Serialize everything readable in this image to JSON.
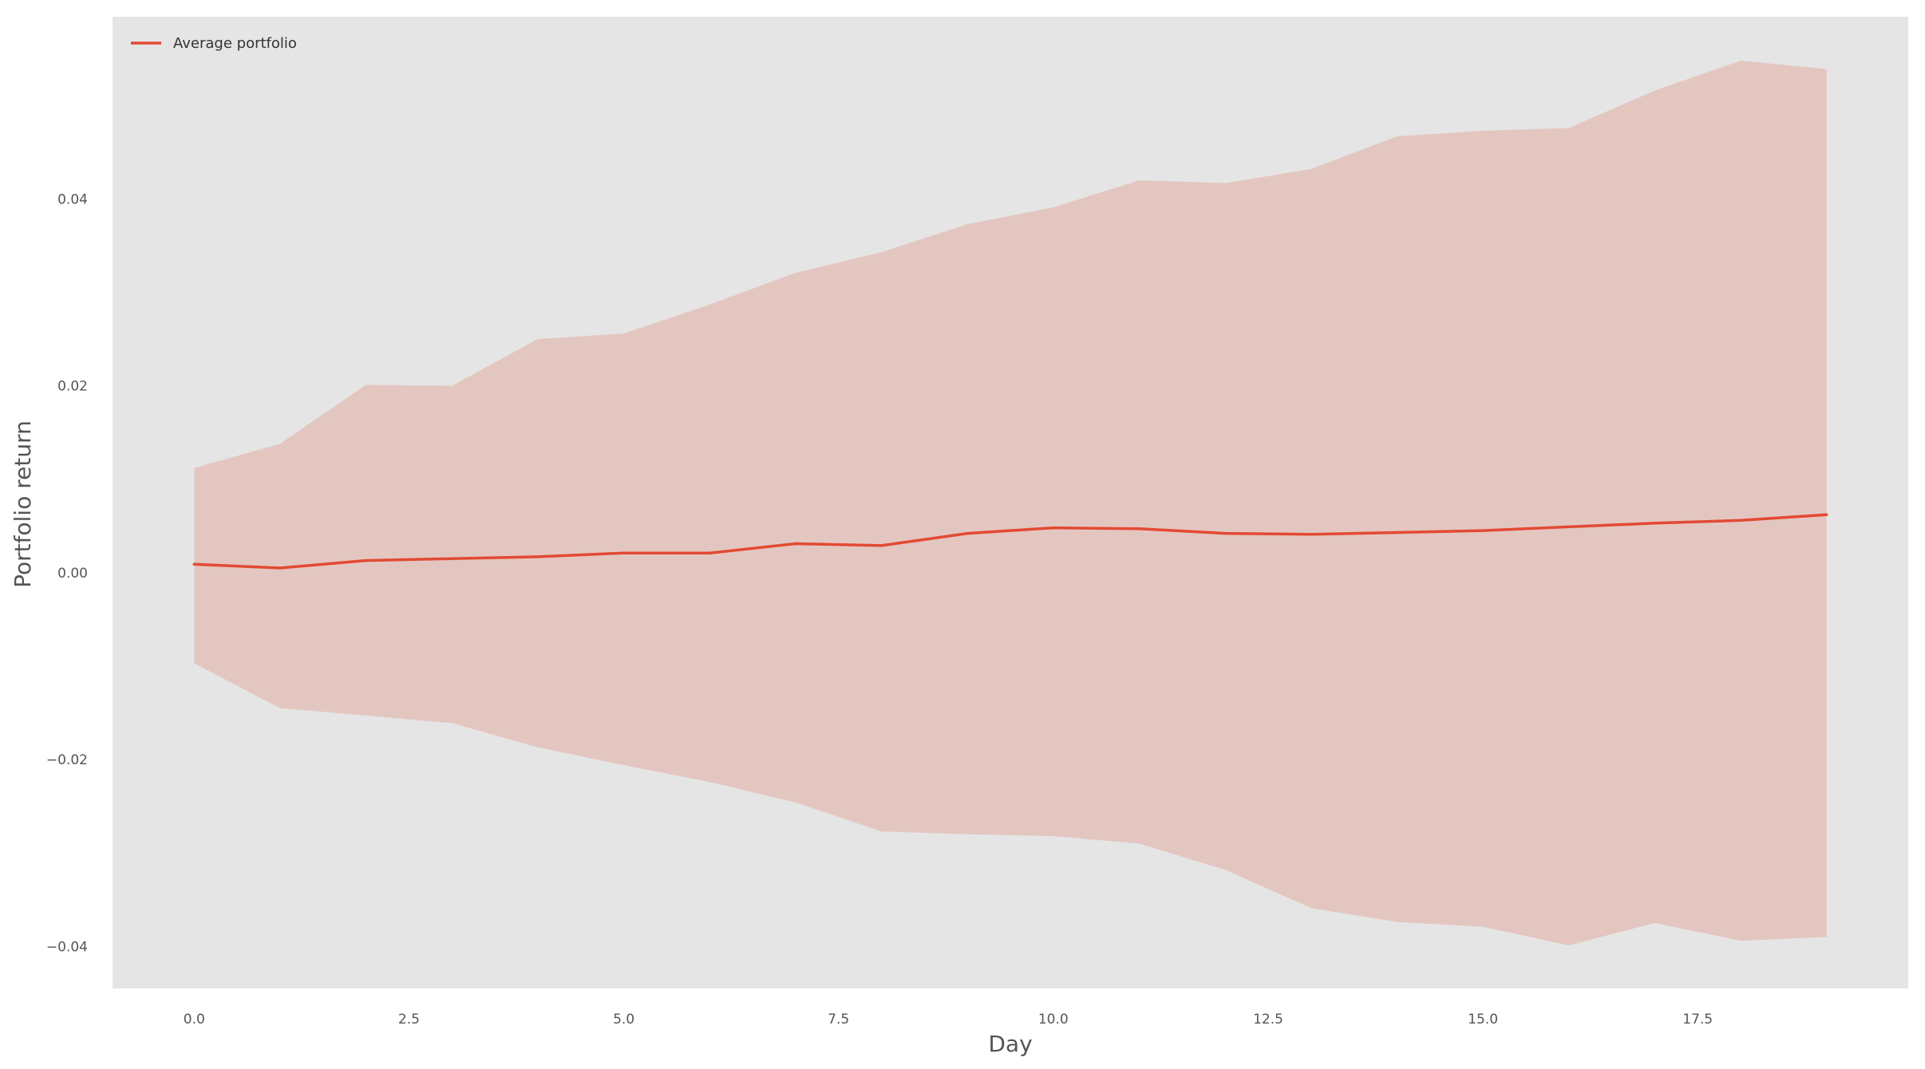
{
  "chart_data": {
    "type": "line",
    "title": "",
    "xlabel": "Day",
    "ylabel": "Portfolio return",
    "xlim": [
      -0.95,
      19.95
    ],
    "ylim": [
      -0.0445,
      0.0595
    ],
    "x_ticks": [
      0.0,
      2.5,
      5.0,
      7.5,
      10.0,
      12.5,
      15.0,
      17.5
    ],
    "x_tick_labels": [
      "0.0",
      "2.5",
      "5.0",
      "7.5",
      "10.0",
      "12.5",
      "15.0",
      "17.5"
    ],
    "y_ticks": [
      -0.04,
      -0.02,
      0.0,
      0.02,
      0.04
    ],
    "y_tick_labels": [
      "−0.04",
      "−0.02",
      "0.00",
      "0.02",
      "0.04"
    ],
    "grid": false,
    "legend_position": "top-left",
    "background_color": "#e5e5e5",
    "line_color": "#e24a33",
    "band_color": "#e24a33",
    "band_opacity": 0.2,
    "x": [
      0,
      1,
      2,
      3,
      4,
      5,
      6,
      7,
      8,
      9,
      10,
      11,
      12,
      13,
      14,
      15,
      16,
      17,
      18,
      19
    ],
    "series": [
      {
        "name": "Average portfolio",
        "values": [
          0.0009,
          0.0005,
          0.0013,
          0.0015,
          0.0017,
          0.0021,
          0.0021,
          0.0031,
          0.0029,
          0.0042,
          0.0048,
          0.0047,
          0.0042,
          0.0041,
          0.0043,
          0.0045,
          0.0049,
          0.0053,
          0.0056,
          0.0062
        ]
      }
    ],
    "band": {
      "upper": [
        0.0112,
        0.0138,
        0.0201,
        0.02,
        0.025,
        0.0256,
        0.0287,
        0.0321,
        0.0343,
        0.0373,
        0.0391,
        0.042,
        0.0417,
        0.0432,
        0.0467,
        0.0473,
        0.0476,
        0.0516,
        0.0548,
        0.0539
      ],
      "lower": [
        -0.0097,
        -0.0145,
        -0.0153,
        -0.0161,
        -0.0187,
        -0.0206,
        -0.0224,
        -0.0246,
        -0.0277,
        -0.028,
        -0.0282,
        -0.029,
        -0.0318,
        -0.0359,
        -0.0374,
        -0.0379,
        -0.0399,
        -0.0375,
        -0.0394,
        -0.039
      ]
    }
  }
}
